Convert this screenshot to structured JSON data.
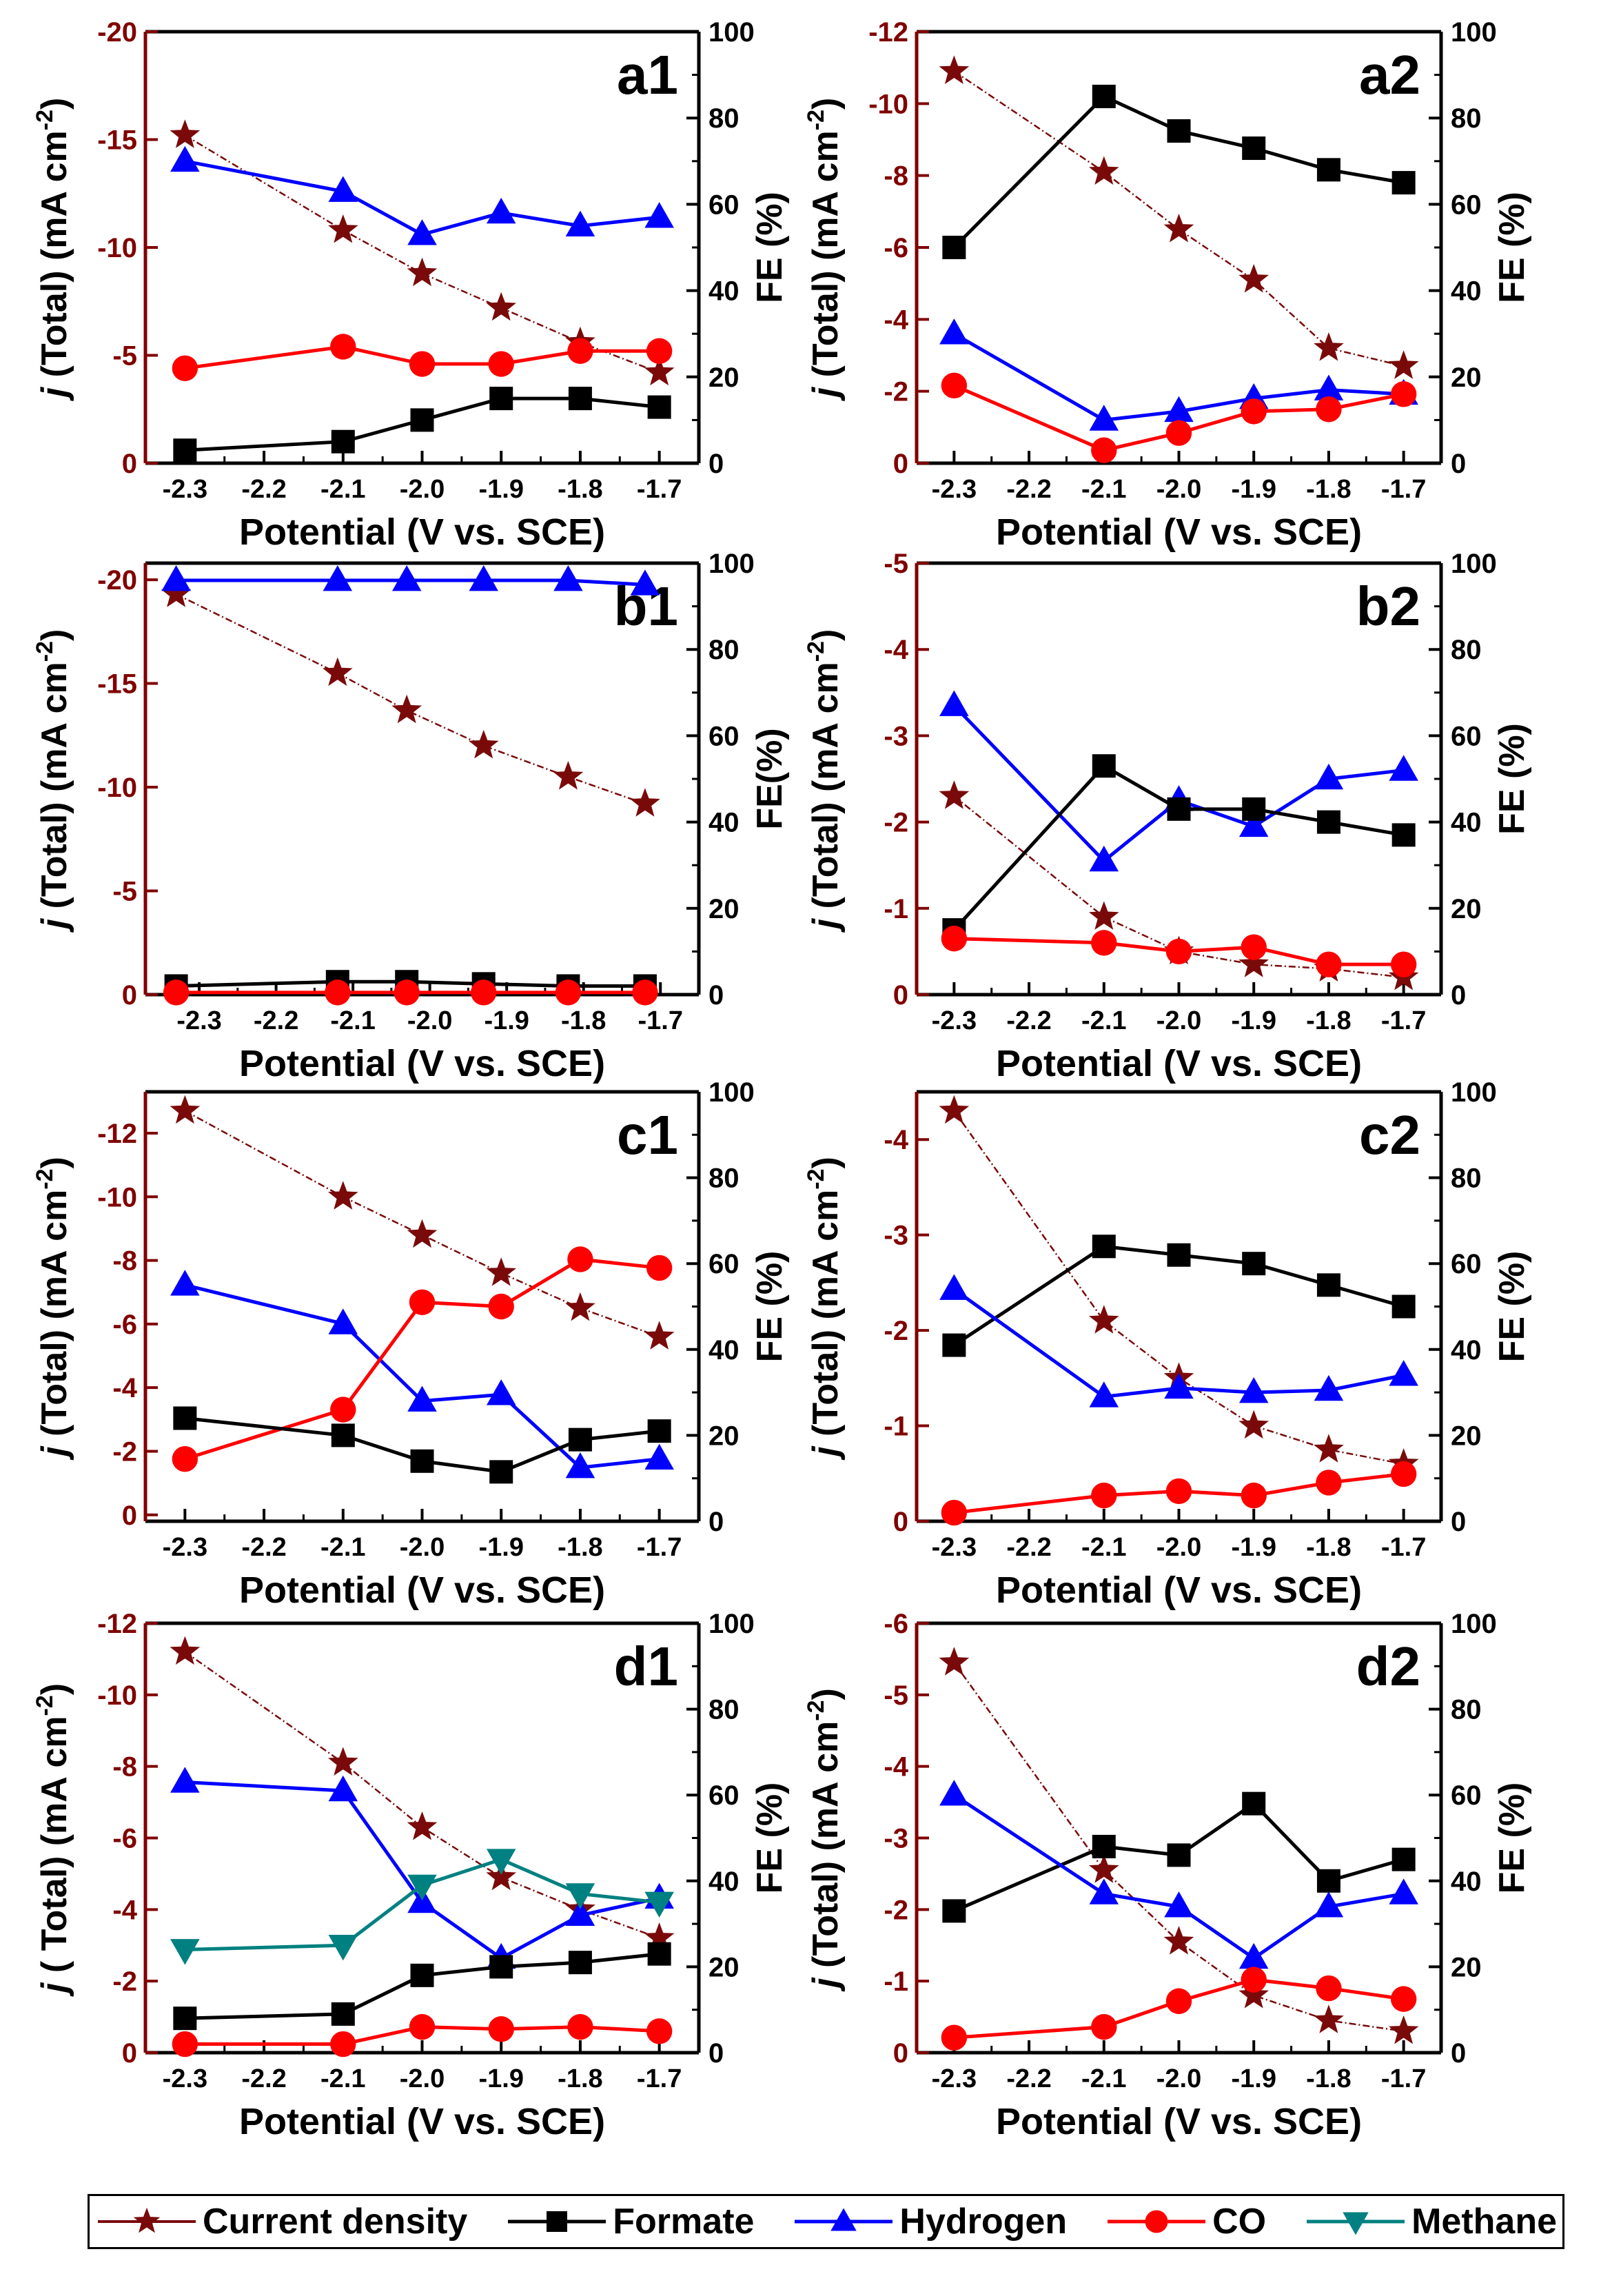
{
  "colors": {
    "current": "#7a0a0a",
    "formate": "#000000",
    "hydrogen": "#0000ff",
    "co": "#ff0000",
    "methane": "#008080",
    "left_axis": "#800000"
  },
  "legend": [
    {
      "key": "current",
      "label": "Current density",
      "marker": "star"
    },
    {
      "key": "formate",
      "label": "Formate",
      "marker": "square"
    },
    {
      "key": "hydrogen",
      "label": "Hydrogen",
      "marker": "triangle-up"
    },
    {
      "key": "co",
      "label": "CO",
      "marker": "circle"
    },
    {
      "key": "methane",
      "label": "Methane",
      "marker": "triangle-down"
    }
  ],
  "chart_data": [
    {
      "type": "line",
      "panel": "a1",
      "xlabel": "Potential (V vs. SCE)",
      "ylabel": "j (Total) (mA cm-2)",
      "y2label": "FE (%)",
      "xticks": [
        "-2.3",
        "-2.2",
        "-2.1",
        "-2.0",
        "-1.9",
        "-1.8",
        "-1.7"
      ],
      "xlim": [
        -2.35,
        -1.65
      ],
      "ylim": [
        0,
        -20
      ],
      "yticks": [
        0,
        -5,
        -10,
        -15,
        -20
      ],
      "y2lim": [
        0,
        100
      ],
      "y2ticks": [
        0,
        20,
        40,
        60,
        80,
        100
      ],
      "x": [
        -2.3,
        -2.1,
        -2.0,
        -1.9,
        -1.8,
        -1.7
      ],
      "series": [
        {
          "key": "current",
          "axis": "left",
          "values": [
            -15.2,
            -10.8,
            -8.8,
            -7.2,
            -5.6,
            -4.2
          ]
        },
        {
          "key": "hydrogen",
          "axis": "right",
          "values": [
            70,
            63,
            53,
            58,
            55,
            57
          ]
        },
        {
          "key": "co",
          "axis": "right",
          "values": [
            22,
            27,
            23,
            23,
            26,
            26
          ]
        },
        {
          "key": "formate",
          "axis": "right",
          "values": [
            3,
            5,
            10,
            15,
            15,
            13
          ]
        }
      ]
    },
    {
      "type": "line",
      "panel": "a2",
      "xlabel": "Potential (V vs. SCE)",
      "ylabel": "j (Total) (mA cm-2)",
      "y2label": "FE (%)",
      "xticks": [
        "-2.3",
        "-2.2",
        "-2.1",
        "-2.0",
        "-1.9",
        "-1.8",
        "-1.7"
      ],
      "xlim": [
        -2.35,
        -1.65
      ],
      "ylim": [
        0,
        -12
      ],
      "yticks": [
        0,
        -2,
        -4,
        -6,
        -8,
        -10,
        -12
      ],
      "y2lim": [
        0,
        100
      ],
      "y2ticks": [
        0,
        20,
        40,
        60,
        80,
        100
      ],
      "x": [
        -2.3,
        -2.1,
        -2.0,
        -1.9,
        -1.8,
        -1.7
      ],
      "series": [
        {
          "key": "current",
          "axis": "left",
          "values": [
            -10.9,
            -8.1,
            -6.5,
            -5.1,
            -3.2,
            -2.7
          ]
        },
        {
          "key": "formate",
          "axis": "right",
          "values": [
            50,
            85,
            77,
            73,
            68,
            65
          ]
        },
        {
          "key": "hydrogen",
          "axis": "right",
          "values": [
            30,
            10,
            12,
            15,
            17,
            16
          ]
        },
        {
          "key": "co",
          "axis": "right",
          "values": [
            18,
            3,
            7,
            12,
            12.5,
            16
          ]
        }
      ]
    },
    {
      "type": "line",
      "panel": "b1",
      "xlabel": "Potential (V vs. SCE)",
      "ylabel": "j (Total) (mA cm-2)",
      "y2label": "FE(%)",
      "xticks": [
        "-2.3",
        "-2.2",
        "-2.1",
        "-2.0",
        "-1.9",
        "-1.8",
        "-1.7"
      ],
      "xlim": [
        -2.37,
        -1.65
      ],
      "ylim": [
        0,
        -20.8
      ],
      "yticks": [
        0,
        -5,
        -10,
        -15,
        -20
      ],
      "y2lim": [
        0,
        100
      ],
      "y2ticks": [
        0,
        20,
        40,
        60,
        80,
        100
      ],
      "x": [
        -2.33,
        -2.12,
        -2.03,
        -1.93,
        -1.82,
        -1.72
      ],
      "series": [
        {
          "key": "current",
          "axis": "left",
          "values": [
            -19.3,
            -15.5,
            -13.7,
            -12.0,
            -10.5,
            -9.2
          ]
        },
        {
          "key": "hydrogen",
          "axis": "right",
          "values": [
            96,
            96,
            96,
            96,
            96,
            95
          ]
        },
        {
          "key": "formate",
          "axis": "right",
          "values": [
            2,
            3,
            3,
            2.5,
            2,
            2
          ]
        },
        {
          "key": "co",
          "axis": "right",
          "values": [
            0.5,
            0.5,
            0.5,
            0.5,
            0.5,
            0.5
          ]
        }
      ]
    },
    {
      "type": "line",
      "panel": "b2",
      "xlabel": "Potential (V vs. SCE)",
      "ylabel": "j (Total) (mA cm-2)",
      "y2label": "FE (%)",
      "xticks": [
        "-2.3",
        "-2.2",
        "-2.1",
        "-2.0",
        "-1.9",
        "-1.8",
        "-1.7"
      ],
      "xlim": [
        -2.35,
        -1.65
      ],
      "ylim": [
        0,
        -5
      ],
      "yticks": [
        0,
        -1,
        -2,
        -3,
        -4,
        -5
      ],
      "y2lim": [
        0,
        100
      ],
      "y2ticks": [
        0,
        20,
        40,
        60,
        80,
        100
      ],
      "x": [
        -2.3,
        -2.1,
        -2.0,
        -1.9,
        -1.8,
        -1.7
      ],
      "series": [
        {
          "key": "current",
          "axis": "left",
          "values": [
            -2.3,
            -0.9,
            -0.5,
            -0.35,
            -0.3,
            -0.2
          ]
        },
        {
          "key": "hydrogen",
          "axis": "right",
          "values": [
            67,
            31,
            45,
            39,
            50,
            52
          ]
        },
        {
          "key": "formate",
          "axis": "right",
          "values": [
            15,
            53,
            43,
            43,
            40,
            37
          ]
        },
        {
          "key": "co",
          "axis": "right",
          "values": [
            13,
            12,
            10,
            11,
            7,
            7
          ]
        }
      ]
    },
    {
      "type": "line",
      "panel": "c1",
      "xlabel": "Potential (V vs. SCE)",
      "ylabel": "j (Total) (mA cm-2)",
      "y2label": "FE (%)",
      "xticks": [
        "-2.3",
        "-2.2",
        "-2.1",
        "-2.0",
        "-1.9",
        "-1.8",
        "-1.7"
      ],
      "xlim": [
        -2.35,
        -1.65
      ],
      "ylim": [
        0.2,
        -13.3
      ],
      "yticks": [
        0,
        -2,
        -4,
        -6,
        -8,
        -10,
        -12
      ],
      "y2lim": [
        0,
        100
      ],
      "y2ticks": [
        0,
        20,
        40,
        60,
        80,
        100
      ],
      "x": [
        -2.3,
        -2.1,
        -2.0,
        -1.9,
        -1.8,
        -1.7
      ],
      "series": [
        {
          "key": "current",
          "axis": "left",
          "values": [
            -12.7,
            -10.0,
            -8.8,
            -7.6,
            -6.5,
            -5.6
          ]
        },
        {
          "key": "hydrogen",
          "axis": "right",
          "values": [
            55,
            46,
            28,
            29.5,
            12.5,
            14.5
          ]
        },
        {
          "key": "co",
          "axis": "right",
          "values": [
            14.5,
            26,
            51,
            50,
            61,
            59
          ]
        },
        {
          "key": "formate",
          "axis": "right",
          "values": [
            24,
            20,
            14,
            11.5,
            19,
            21
          ]
        }
      ]
    },
    {
      "type": "line",
      "panel": "c2",
      "xlabel": "Potential (V vs. SCE)",
      "ylabel": "j (Total) (mA cm-2)",
      "y2label": "FE (%)",
      "xticks": [
        "-2.3",
        "-2.2",
        "-2.1",
        "-2.0",
        "-1.9",
        "-1.8",
        "-1.7"
      ],
      "xlim": [
        -2.35,
        -1.65
      ],
      "ylim": [
        0,
        -4.5
      ],
      "yticks": [
        0,
        -1,
        -2,
        -3,
        -4
      ],
      "y2lim": [
        0,
        100
      ],
      "y2ticks": [
        0,
        20,
        40,
        60,
        80,
        100
      ],
      "x": [
        -2.3,
        -2.1,
        -2.0,
        -1.9,
        -1.8,
        -1.7
      ],
      "series": [
        {
          "key": "current",
          "axis": "left",
          "values": [
            -4.3,
            -2.1,
            -1.5,
            -1.0,
            -0.75,
            -0.6
          ]
        },
        {
          "key": "formate",
          "axis": "right",
          "values": [
            41,
            64,
            62,
            60,
            55,
            50
          ]
        },
        {
          "key": "hydrogen",
          "axis": "right",
          "values": [
            54,
            29,
            31,
            30,
            30.5,
            34
          ]
        },
        {
          "key": "co",
          "axis": "right",
          "values": [
            2,
            6,
            7,
            6,
            9,
            11
          ]
        }
      ]
    },
    {
      "type": "line",
      "panel": "d1",
      "xlabel": "Potential (V vs. SCE)",
      "ylabel": "j ( Total) (mA cm-2)",
      "y2label": "FE (%)",
      "xticks": [
        "-2.3",
        "-2.2",
        "-2.1",
        "-2.0",
        "-1.9",
        "-1.8",
        "-1.7"
      ],
      "xlim": [
        -2.35,
        -1.65
      ],
      "ylim": [
        0,
        -12
      ],
      "yticks": [
        0,
        -2,
        -4,
        -6,
        -8,
        -10,
        -12
      ],
      "y2lim": [
        0,
        100
      ],
      "y2ticks": [
        0,
        20,
        40,
        60,
        80,
        100
      ],
      "x": [
        -2.3,
        -2.1,
        -2.0,
        -1.9,
        -1.8,
        -1.7
      ],
      "series": [
        {
          "key": "current",
          "axis": "left",
          "values": [
            -11.2,
            -8.1,
            -6.3,
            -4.9,
            -4.0,
            -3.2
          ]
        },
        {
          "key": "hydrogen",
          "axis": "right",
          "values": [
            63,
            61,
            35,
            22,
            32,
            36
          ]
        },
        {
          "key": "methane",
          "axis": "right",
          "values": [
            24,
            25,
            39,
            45,
            37,
            35
          ]
        },
        {
          "key": "formate",
          "axis": "right",
          "values": [
            8,
            9,
            18,
            20,
            21,
            23
          ]
        },
        {
          "key": "co",
          "axis": "right",
          "values": [
            2,
            2,
            6,
            5.5,
            6,
            5
          ]
        }
      ]
    },
    {
      "type": "line",
      "panel": "d2",
      "xlabel": "Potential (V vs. SCE)",
      "ylabel": "j (Total) (mA cm-2)",
      "y2label": "FE (%)",
      "xticks": [
        "-2.3",
        "-2.2",
        "-2.1",
        "-2.0",
        "-1.9",
        "-1.8",
        "-1.7"
      ],
      "xlim": [
        -2.35,
        -1.65
      ],
      "ylim": [
        0,
        -6
      ],
      "yticks": [
        0,
        -1,
        -2,
        -3,
        -4,
        -5,
        -6
      ],
      "y2lim": [
        0,
        100
      ],
      "y2ticks": [
        0,
        20,
        40,
        60,
        80,
        100
      ],
      "x": [
        -2.3,
        -2.1,
        -2.0,
        -1.9,
        -1.8,
        -1.7
      ],
      "series": [
        {
          "key": "current",
          "axis": "left",
          "values": [
            -5.45,
            -2.55,
            -1.55,
            -0.8,
            -0.45,
            -0.3
          ]
        },
        {
          "key": "formate",
          "axis": "right",
          "values": [
            33,
            48,
            46,
            58,
            40,
            45
          ]
        },
        {
          "key": "hydrogen",
          "axis": "right",
          "values": [
            60,
            37,
            34,
            22,
            34,
            37
          ]
        },
        {
          "key": "co",
          "axis": "right",
          "values": [
            3.5,
            6,
            12,
            17,
            15,
            12.5
          ]
        }
      ]
    }
  ]
}
